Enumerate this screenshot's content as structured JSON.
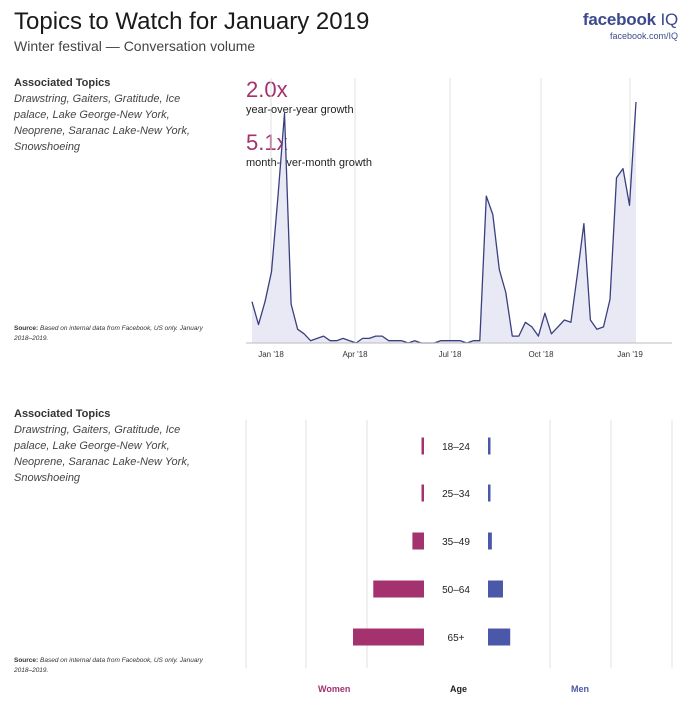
{
  "header": {
    "title": "Topics to Watch for January 2019",
    "subtitle": "Winter festival — Conversation volume",
    "brand_name": "facebook",
    "brand_suffix": "IQ",
    "brand_url": "facebook.com/IQ"
  },
  "panel_top": {
    "topics_heading": "Associated Topics",
    "topics": "Drawstring, Gaiters, Gratitude, Ice palace, Lake George-New York, Neoprene, Saranac Lake-New York, Snowshoeing",
    "source_label": "Source:",
    "source_text": "Based on internal data from Facebook, US only. January 2018–2019.",
    "stats": [
      {
        "value": "2.0x",
        "label": "year-over-year growth"
      },
      {
        "value": "5.1x",
        "label": "month-over-month growth"
      }
    ]
  },
  "panel_bottom": {
    "topics_heading": "Associated Topics",
    "topics": "Drawstring, Gaiters, Gratitude, Ice palace, Lake George-New York, Neoprene, Saranac Lake-New York, Snowshoeing",
    "source_label": "Source:",
    "source_text": "Based on internal data from Facebook, US only. January 2018–2019.",
    "women_label": "Women",
    "age_label": "Age",
    "men_label": "Men"
  },
  "colors": {
    "line": "#3b3f7e",
    "area": "#e8e9f4",
    "women": "#a3326f",
    "men": "#4b57a8",
    "grid": "#e2e2e2"
  },
  "chart_data": [
    {
      "type": "area",
      "title": "",
      "xlabel": "",
      "ylabel": "",
      "x_ticks": [
        "Jan '18",
        "Apr '18",
        "Jul '18",
        "Oct '18",
        "Jan '19"
      ],
      "ylim": [
        0,
        100
      ],
      "series": [
        {
          "values": [
            18,
            8,
            18,
            31,
            64,
            100,
            17,
            6,
            4,
            1,
            2,
            3,
            1,
            1,
            2,
            1,
            0,
            2,
            2,
            3,
            3,
            1,
            1,
            1,
            0,
            1,
            0,
            0,
            0,
            1,
            1,
            1,
            1,
            0,
            1,
            1,
            64,
            56,
            32,
            22,
            3,
            3,
            9,
            7,
            3,
            13,
            4,
            7,
            10,
            9,
            30,
            52,
            10,
            6,
            7,
            19,
            72,
            76,
            60,
            105
          ]
        }
      ]
    },
    {
      "type": "bar",
      "title": "",
      "orientation": "horizontal",
      "categories": [
        "18–24",
        "25–34",
        "35–49",
        "50–64",
        "65+"
      ],
      "xlim": [
        -0.25,
        0.25
      ],
      "series": [
        {
          "name": "Women",
          "values": [
            0.5,
            0.5,
            2.4,
            10.5,
            14.7
          ]
        },
        {
          "name": "Men",
          "values": [
            0.5,
            0.4,
            0.8,
            3.1,
            4.6
          ]
        }
      ]
    }
  ]
}
